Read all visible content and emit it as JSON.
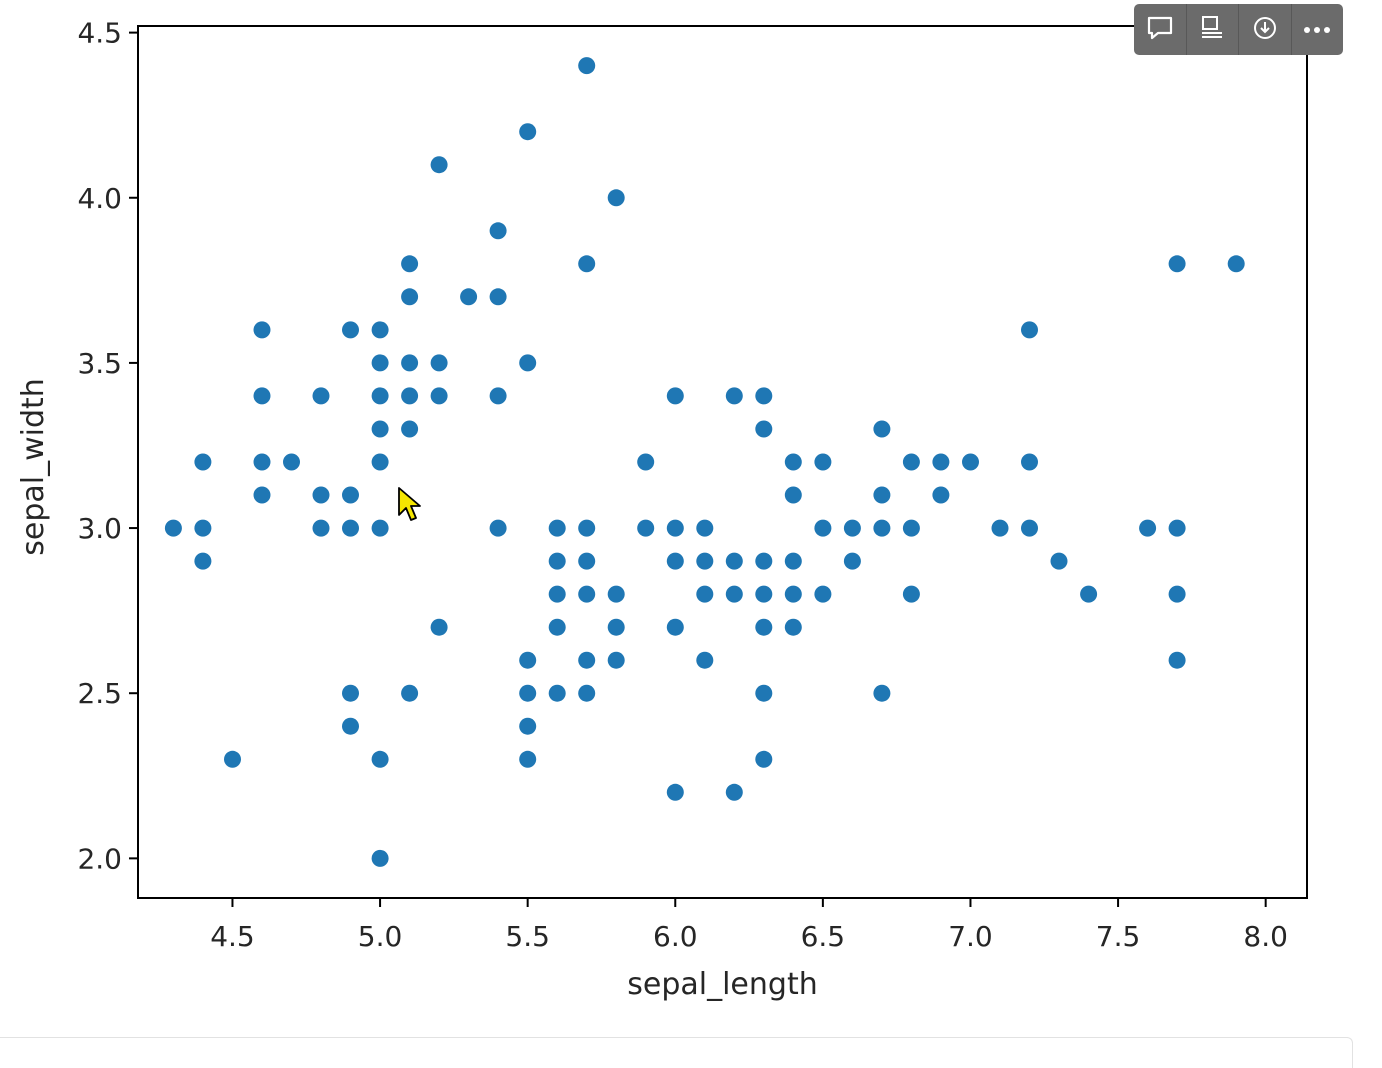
{
  "chart_data": {
    "type": "scatter",
    "xlabel": "sepal_length",
    "ylabel": "sepal_width",
    "xlim": [
      4.18,
      8.14
    ],
    "ylim": [
      1.88,
      4.52
    ],
    "xticks": [
      "4.5",
      "5.0",
      "5.5",
      "6.0",
      "6.5",
      "7.0",
      "7.5",
      "8.0"
    ],
    "yticks": [
      "2.0",
      "2.5",
      "3.0",
      "3.5",
      "4.0",
      "4.5"
    ],
    "grid": false,
    "marker_color": "#1f77b4",
    "points": [
      [
        5.7,
        4.4
      ],
      [
        5.5,
        4.2
      ],
      [
        5.2,
        4.1
      ],
      [
        5.8,
        4.0
      ],
      [
        5.4,
        3.9
      ],
      [
        5.1,
        3.8
      ],
      [
        5.7,
        3.8
      ],
      [
        7.7,
        3.8
      ],
      [
        7.9,
        3.8
      ],
      [
        5.1,
        3.7
      ],
      [
        5.3,
        3.7
      ],
      [
        5.4,
        3.7
      ],
      [
        4.6,
        3.6
      ],
      [
        4.9,
        3.6
      ],
      [
        5.0,
        3.6
      ],
      [
        7.2,
        3.6
      ],
      [
        5.0,
        3.5
      ],
      [
        5.1,
        3.5
      ],
      [
        5.2,
        3.5
      ],
      [
        5.5,
        3.5
      ],
      [
        4.6,
        3.4
      ],
      [
        4.8,
        3.4
      ],
      [
        5.0,
        3.4
      ],
      [
        5.1,
        3.4
      ],
      [
        5.2,
        3.4
      ],
      [
        5.4,
        3.4
      ],
      [
        6.0,
        3.4
      ],
      [
        6.2,
        3.4
      ],
      [
        6.3,
        3.4
      ],
      [
        5.0,
        3.3
      ],
      [
        5.1,
        3.3
      ],
      [
        6.3,
        3.3
      ],
      [
        6.7,
        3.3
      ],
      [
        4.4,
        3.2
      ],
      [
        4.6,
        3.2
      ],
      [
        4.7,
        3.2
      ],
      [
        5.0,
        3.2
      ],
      [
        5.9,
        3.2
      ],
      [
        6.4,
        3.2
      ],
      [
        6.5,
        3.2
      ],
      [
        6.8,
        3.2
      ],
      [
        6.9,
        3.2
      ],
      [
        7.0,
        3.2
      ],
      [
        7.2,
        3.2
      ],
      [
        4.6,
        3.1
      ],
      [
        4.8,
        3.1
      ],
      [
        4.9,
        3.1
      ],
      [
        6.4,
        3.1
      ],
      [
        6.7,
        3.1
      ],
      [
        6.9,
        3.1
      ],
      [
        4.3,
        3.0
      ],
      [
        4.4,
        3.0
      ],
      [
        4.8,
        3.0
      ],
      [
        4.9,
        3.0
      ],
      [
        5.0,
        3.0
      ],
      [
        5.4,
        3.0
      ],
      [
        5.6,
        3.0
      ],
      [
        5.7,
        3.0
      ],
      [
        5.9,
        3.0
      ],
      [
        6.0,
        3.0
      ],
      [
        6.1,
        3.0
      ],
      [
        6.5,
        3.0
      ],
      [
        6.6,
        3.0
      ],
      [
        6.7,
        3.0
      ],
      [
        6.8,
        3.0
      ],
      [
        7.1,
        3.0
      ],
      [
        7.2,
        3.0
      ],
      [
        7.6,
        3.0
      ],
      [
        7.7,
        3.0
      ],
      [
        4.4,
        2.9
      ],
      [
        5.6,
        2.9
      ],
      [
        5.7,
        2.9
      ],
      [
        6.0,
        2.9
      ],
      [
        6.1,
        2.9
      ],
      [
        6.2,
        2.9
      ],
      [
        6.3,
        2.9
      ],
      [
        6.4,
        2.9
      ],
      [
        6.6,
        2.9
      ],
      [
        7.3,
        2.9
      ],
      [
        5.6,
        2.8
      ],
      [
        5.7,
        2.8
      ],
      [
        5.8,
        2.8
      ],
      [
        6.1,
        2.8
      ],
      [
        6.2,
        2.8
      ],
      [
        6.3,
        2.8
      ],
      [
        6.4,
        2.8
      ],
      [
        6.5,
        2.8
      ],
      [
        6.8,
        2.8
      ],
      [
        7.4,
        2.8
      ],
      [
        7.7,
        2.8
      ],
      [
        5.2,
        2.7
      ],
      [
        5.6,
        2.7
      ],
      [
        5.8,
        2.7
      ],
      [
        6.0,
        2.7
      ],
      [
        6.3,
        2.7
      ],
      [
        6.4,
        2.7
      ],
      [
        5.5,
        2.6
      ],
      [
        5.7,
        2.6
      ],
      [
        5.8,
        2.6
      ],
      [
        6.1,
        2.6
      ],
      [
        7.7,
        2.6
      ],
      [
        4.9,
        2.5
      ],
      [
        5.1,
        2.5
      ],
      [
        5.5,
        2.5
      ],
      [
        5.6,
        2.5
      ],
      [
        5.7,
        2.5
      ],
      [
        6.3,
        2.5
      ],
      [
        6.7,
        2.5
      ],
      [
        4.9,
        2.4
      ],
      [
        5.5,
        2.4
      ],
      [
        4.5,
        2.3
      ],
      [
        5.0,
        2.3
      ],
      [
        5.5,
        2.3
      ],
      [
        6.3,
        2.3
      ],
      [
        6.0,
        2.2
      ],
      [
        6.2,
        2.2
      ],
      [
        5.0,
        2.0
      ]
    ]
  },
  "toolbar": {
    "icons": [
      "comment-icon",
      "table-view-icon",
      "download-icon",
      "more-icon"
    ],
    "background": "#6b6b6b"
  }
}
